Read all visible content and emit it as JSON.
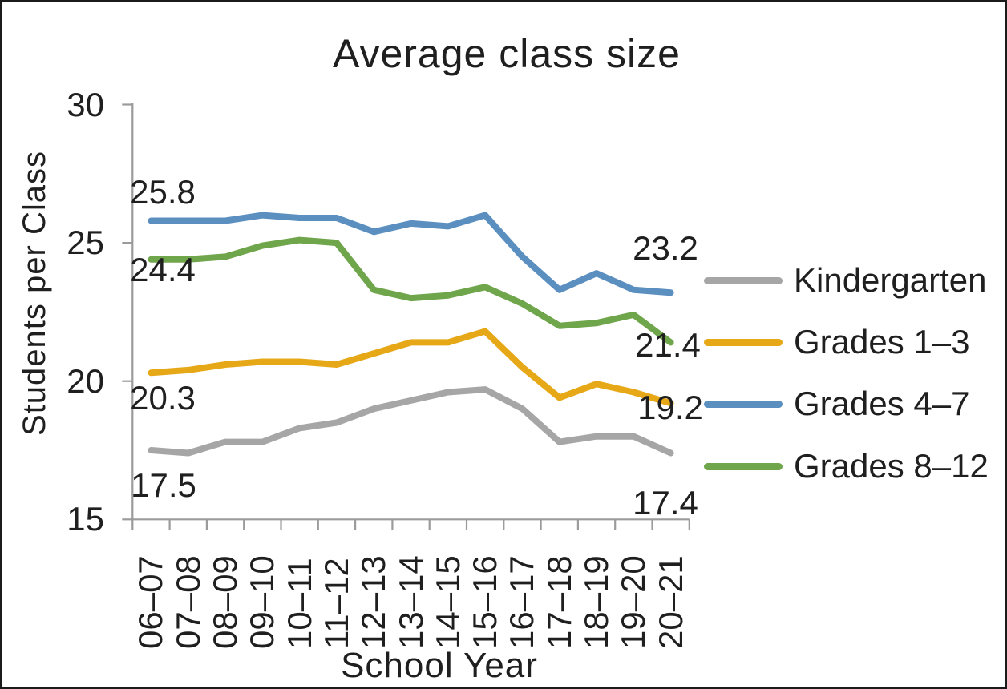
{
  "chart_data": {
    "type": "line",
    "title": "Average class size",
    "xlabel": "School Year",
    "ylabel": "Students per Class",
    "ylim": [
      15,
      30
    ],
    "y_ticks": [
      "30",
      "25",
      "20",
      "15"
    ],
    "y_tick_values": [
      30,
      25,
      20,
      15
    ],
    "grid": false,
    "legend_position": "right",
    "categories": [
      "06–07",
      "07–08",
      "08–09",
      "09–10",
      "10–11",
      "11–12",
      "12–13",
      "13–14",
      "14–15",
      "15–16",
      "16–17",
      "17–18",
      "18–19",
      "19–20",
      "20–21"
    ],
    "series": [
      {
        "name": "Kindergarten",
        "color": "#A6A6A6",
        "values": [
          17.5,
          17.4,
          17.8,
          17.8,
          18.3,
          18.5,
          19.0,
          19.3,
          19.6,
          19.7,
          19.0,
          17.8,
          18.0,
          18.0,
          17.4
        ]
      },
      {
        "name": "Grades 1–3",
        "color": "#E6A817",
        "values": [
          20.3,
          20.4,
          20.6,
          20.7,
          20.7,
          20.6,
          21.0,
          21.4,
          21.4,
          21.8,
          20.5,
          19.4,
          19.9,
          19.6,
          19.2
        ]
      },
      {
        "name": "Grades 4–7",
        "color": "#5B8FC0",
        "values": [
          25.8,
          25.8,
          25.8,
          26.0,
          25.9,
          25.9,
          25.4,
          25.7,
          25.6,
          26.0,
          24.5,
          23.3,
          23.9,
          23.3,
          23.2
        ]
      },
      {
        "name": "Grades 8–12",
        "color": "#6FA54B",
        "values": [
          24.4,
          24.4,
          24.5,
          24.9,
          25.1,
          25.0,
          23.3,
          23.0,
          23.1,
          23.4,
          22.8,
          22.0,
          22.1,
          22.4,
          21.4
        ]
      }
    ],
    "data_labels": [
      {
        "series": "Grades 4–7",
        "position": "first",
        "text": "25.8"
      },
      {
        "series": "Grades 8–12",
        "position": "first",
        "text": "24.4"
      },
      {
        "series": "Grades 1–3",
        "position": "first",
        "text": "20.3"
      },
      {
        "series": "Kindergarten",
        "position": "first",
        "text": "17.5"
      },
      {
        "series": "Grades 4–7",
        "position": "last",
        "text": "23.2"
      },
      {
        "series": "Grades 8–12",
        "position": "last",
        "text": "21.4"
      },
      {
        "series": "Grades 1–3",
        "position": "last",
        "text": "19.2"
      },
      {
        "series": "Kindergarten",
        "position": "last",
        "text": "17.4"
      }
    ],
    "axis_color": "#9B9B9B",
    "text_color": "#1f1f1f"
  }
}
